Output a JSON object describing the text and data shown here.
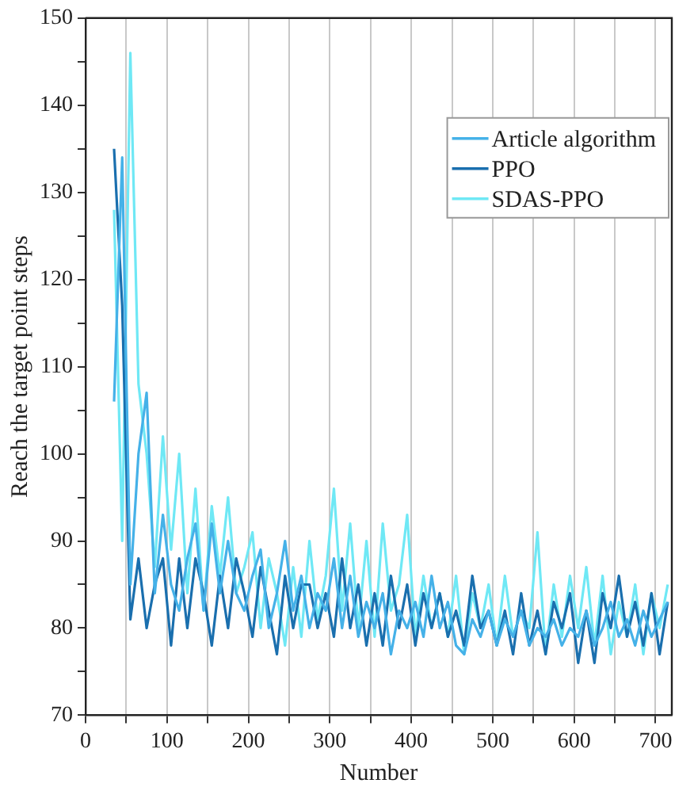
{
  "chart_data": {
    "type": "line",
    "xlabel": "Number",
    "ylabel": "Reach the target point steps",
    "x": [
      35,
      45,
      55,
      65,
      75,
      85,
      95,
      105,
      115,
      125,
      135,
      145,
      155,
      165,
      175,
      185,
      195,
      205,
      215,
      225,
      235,
      245,
      255,
      265,
      275,
      285,
      295,
      305,
      315,
      325,
      335,
      345,
      355,
      365,
      375,
      385,
      395,
      405,
      415,
      425,
      435,
      445,
      455,
      465,
      475,
      485,
      495,
      505,
      515,
      525,
      535,
      545,
      555,
      565,
      575,
      585,
      595,
      605,
      615,
      625,
      635,
      645,
      655,
      665,
      675,
      685,
      695,
      705,
      715
    ],
    "series": [
      {
        "name": "Article algorithm",
        "color": "#45b1e8",
        "values": [
          106,
          134,
          85,
          100,
          107,
          84,
          93,
          85,
          82,
          88,
          92,
          82,
          92,
          84,
          90,
          84,
          82,
          86,
          89,
          80,
          84,
          90,
          82,
          86,
          80,
          84,
          82,
          88,
          80,
          86,
          79,
          83,
          80,
          84,
          77,
          82,
          80,
          83,
          79,
          86,
          80,
          83,
          78,
          77,
          81,
          79,
          82,
          78,
          81,
          79,
          82,
          78,
          80,
          79,
          81,
          78,
          80,
          79,
          82,
          78,
          80,
          83,
          79,
          81,
          78,
          82,
          79,
          81,
          83
        ]
      },
      {
        "name": "PPO",
        "color": "#1a6fae",
        "values": [
          135,
          117,
          81,
          88,
          80,
          85,
          88,
          78,
          88,
          80,
          88,
          84,
          78,
          86,
          80,
          88,
          84,
          79,
          87,
          82,
          77,
          86,
          80,
          85,
          85,
          80,
          84,
          79,
          88,
          80,
          85,
          78,
          84,
          78,
          86,
          80,
          85,
          78,
          84,
          80,
          84,
          79,
          82,
          78,
          86,
          80,
          82,
          78,
          82,
          77,
          84,
          78,
          82,
          77,
          83,
          80,
          84,
          76,
          82,
          76,
          84,
          80,
          86,
          79,
          83,
          78,
          84,
          77,
          83
        ]
      },
      {
        "name": "SDAS-PPO",
        "color": "#6fe8f5",
        "values": [
          128,
          90,
          146,
          108,
          100,
          87,
          102,
          89,
          100,
          84,
          96,
          82,
          94,
          86,
          95,
          84,
          87,
          91,
          80,
          88,
          84,
          78,
          87,
          79,
          90,
          81,
          86,
          96,
          82,
          92,
          80,
          90,
          79,
          92,
          82,
          85,
          93,
          79,
          86,
          80,
          84,
          79,
          86,
          77,
          84,
          80,
          85,
          78,
          86,
          79,
          82,
          80,
          91,
          77,
          85,
          79,
          86,
          80,
          87,
          78,
          86,
          77,
          83,
          79,
          85,
          77,
          84,
          80,
          85
        ]
      }
    ],
    "xlim": [
      0,
      720
    ],
    "xticks": [
      0,
      {
        "value": 50,
        "label": null
      },
      100,
      {
        "value": 150,
        "label": null
      },
      200,
      {
        "value": 250,
        "label": null
      },
      300,
      {
        "value": 350,
        "label": null
      },
      400,
      {
        "value": 450,
        "label": null
      },
      500,
      {
        "value": 550,
        "label": null
      },
      600,
      {
        "value": 650,
        "label": null
      },
      700
    ],
    "ylim": [
      70,
      150
    ],
    "yticks": [
      70,
      {
        "value": 75,
        "label": null
      },
      80,
      {
        "value": 85,
        "label": null
      },
      90,
      {
        "value": 95,
        "label": null
      },
      100,
      {
        "value": 105,
        "label": null
      },
      110,
      {
        "value": 115,
        "label": null
      },
      120,
      {
        "value": 125,
        "label": null
      },
      130,
      {
        "value": 135,
        "label": null
      },
      140,
      {
        "value": 145,
        "label": null
      },
      150
    ],
    "grid": "x",
    "legend": "top right",
    "marker": "none",
    "line_style": "solid"
  }
}
